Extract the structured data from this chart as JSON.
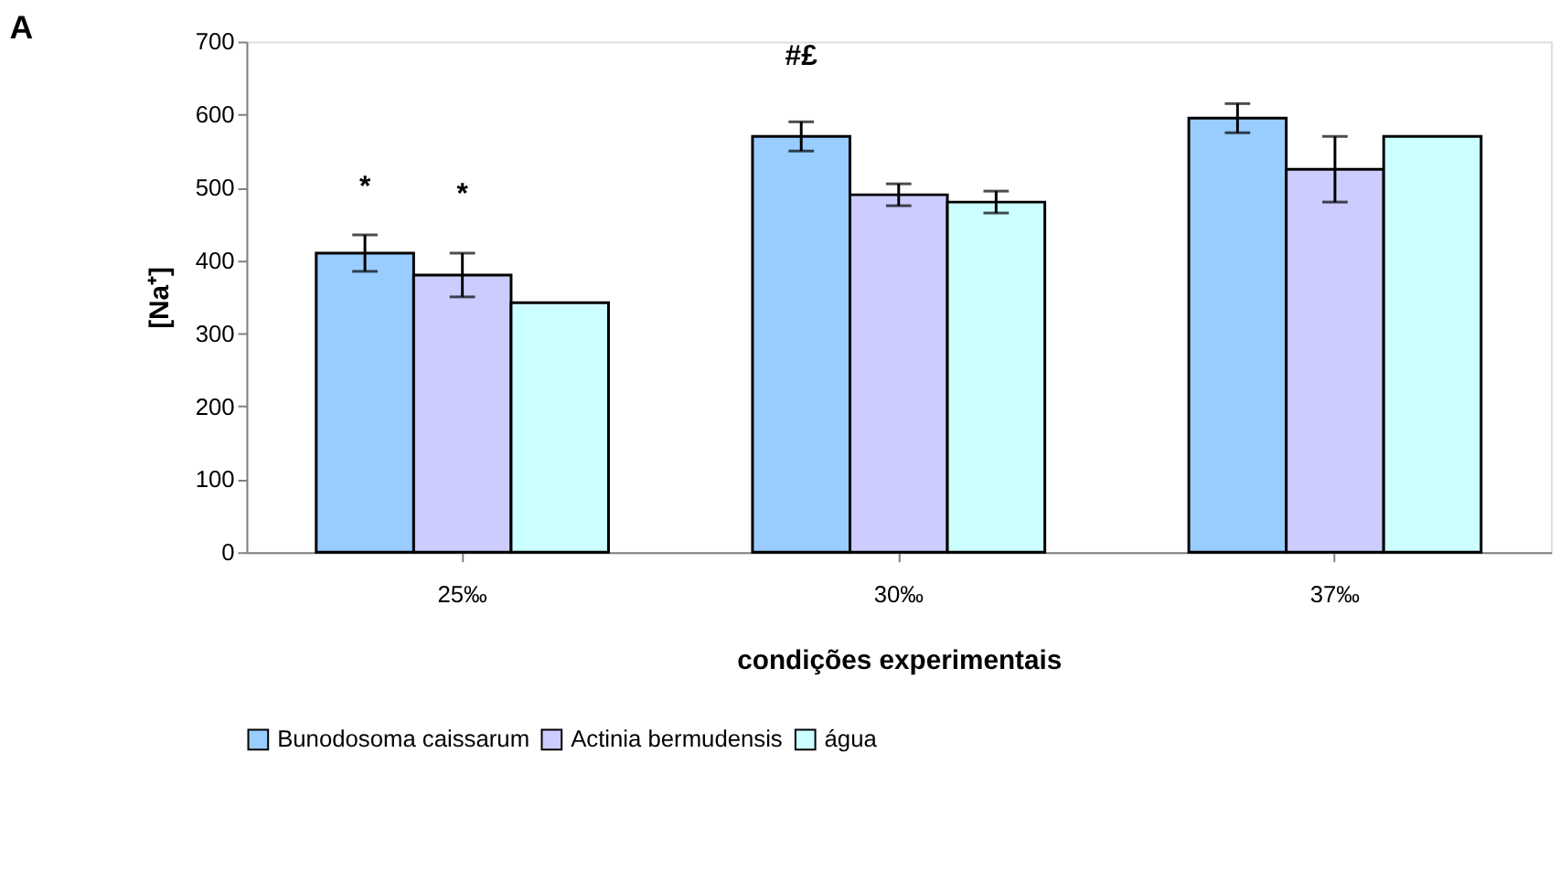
{
  "chart_data": {
    "type": "bar",
    "xlabel": "condições experimentais",
    "ylabel": "[Na⁺]",
    "categories": [
      "25‰",
      "30‰",
      "37‰"
    ],
    "series": [
      {
        "name": "Bunodosoma caissarum",
        "color": "#99ccff",
        "values": [
          410,
          570,
          595
        ],
        "errors": [
          25,
          20,
          20
        ]
      },
      {
        "name": "Actinia bermudensis",
        "color": "#ccccff",
        "values": [
          380,
          490,
          525
        ],
        "errors": [
          30,
          15,
          45
        ]
      },
      {
        "name": "água",
        "color": "#ccffff",
        "values": [
          342,
          480,
          570
        ],
        "errors": [
          null,
          15,
          null
        ]
      }
    ],
    "ylim": [
      0,
      700
    ],
    "yticks": [
      0,
      100,
      200,
      300,
      400,
      500,
      600,
      700
    ],
    "grid": false,
    "legend": "bottom",
    "annotations": [
      "A",
      "*",
      "*",
      "#£"
    ]
  }
}
